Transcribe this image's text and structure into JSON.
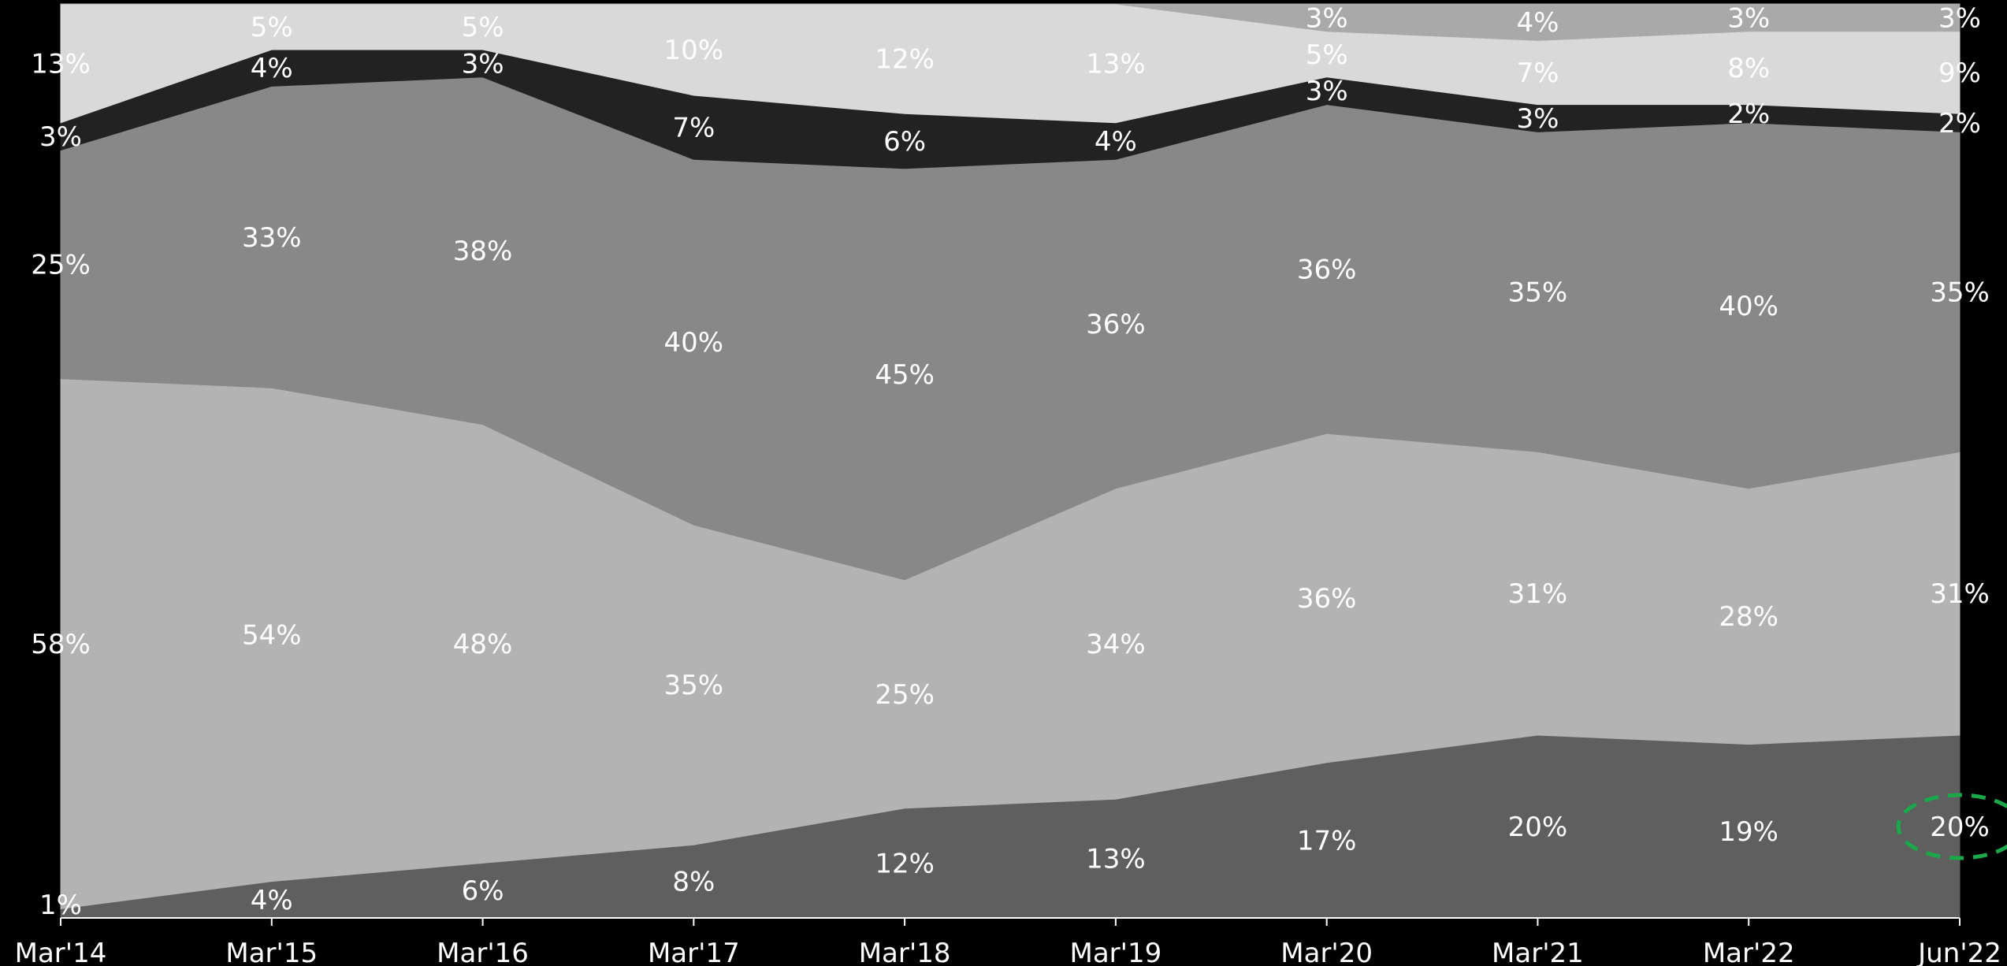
{
  "chart_data": {
    "type": "area",
    "stacked": true,
    "normalized": true,
    "title": "",
    "xlabel": "",
    "ylabel": "",
    "ylim": [
      0,
      100
    ],
    "grid": false,
    "legend": "none",
    "categories": [
      "Mar'14",
      "Mar'15",
      "Mar'16",
      "Mar'17",
      "Mar'18",
      "Mar'19",
      "Mar'20",
      "Mar'21",
      "Mar'22",
      "Jun'22"
    ],
    "series": [
      {
        "color": "#5f5f5f",
        "values": [
          1,
          4,
          6,
          8,
          12,
          13,
          17,
          20,
          19,
          20
        ]
      },
      {
        "color": "#b3b3b3",
        "values": [
          58,
          54,
          48,
          35,
          25,
          34,
          36,
          31,
          28,
          31
        ]
      },
      {
        "color": "#888888",
        "values": [
          25,
          33,
          38,
          40,
          45,
          36,
          36,
          35,
          40,
          35
        ]
      },
      {
        "color": "#222222",
        "values": [
          3,
          4,
          3,
          7,
          6,
          4,
          3,
          3,
          2,
          2
        ]
      },
      {
        "color": "#d9d9d9",
        "values": [
          13,
          5,
          5,
          10,
          12,
          13,
          5,
          7,
          8,
          9
        ]
      },
      {
        "color": "#a9a9a9",
        "values": [
          0,
          0,
          0,
          0,
          0,
          0,
          3,
          4,
          3,
          3
        ]
      }
    ],
    "series_labels": [
      [
        "1%",
        "4%",
        "6%",
        "8%",
        "12%",
        "13%",
        "17%",
        "20%",
        "19%",
        "20%"
      ],
      [
        "58%",
        "54%",
        "48%",
        "35%",
        "25%",
        "34%",
        "36%",
        "31%",
        "28%",
        "31%"
      ],
      [
        "25%",
        "33%",
        "38%",
        "40%",
        "45%",
        "36%",
        "36%",
        "35%",
        "40%",
        "35%"
      ],
      [
        "3%",
        "4%",
        "3%",
        "7%",
        "6%",
        "4%",
        "3%",
        "3%",
        "2%",
        "2%"
      ],
      [
        "13%",
        "5%",
        "5%",
        "10%",
        "12%",
        "13%",
        "5%",
        "7%",
        "8%",
        "9%"
      ],
      [
        "",
        "",
        "",
        "",
        "",
        "",
        "3%",
        "4%",
        "3%",
        "3%"
      ]
    ],
    "highlight": {
      "series_index": 0,
      "category_index": 9,
      "color": "#1aa84a",
      "style": "dashed-ellipse"
    }
  }
}
